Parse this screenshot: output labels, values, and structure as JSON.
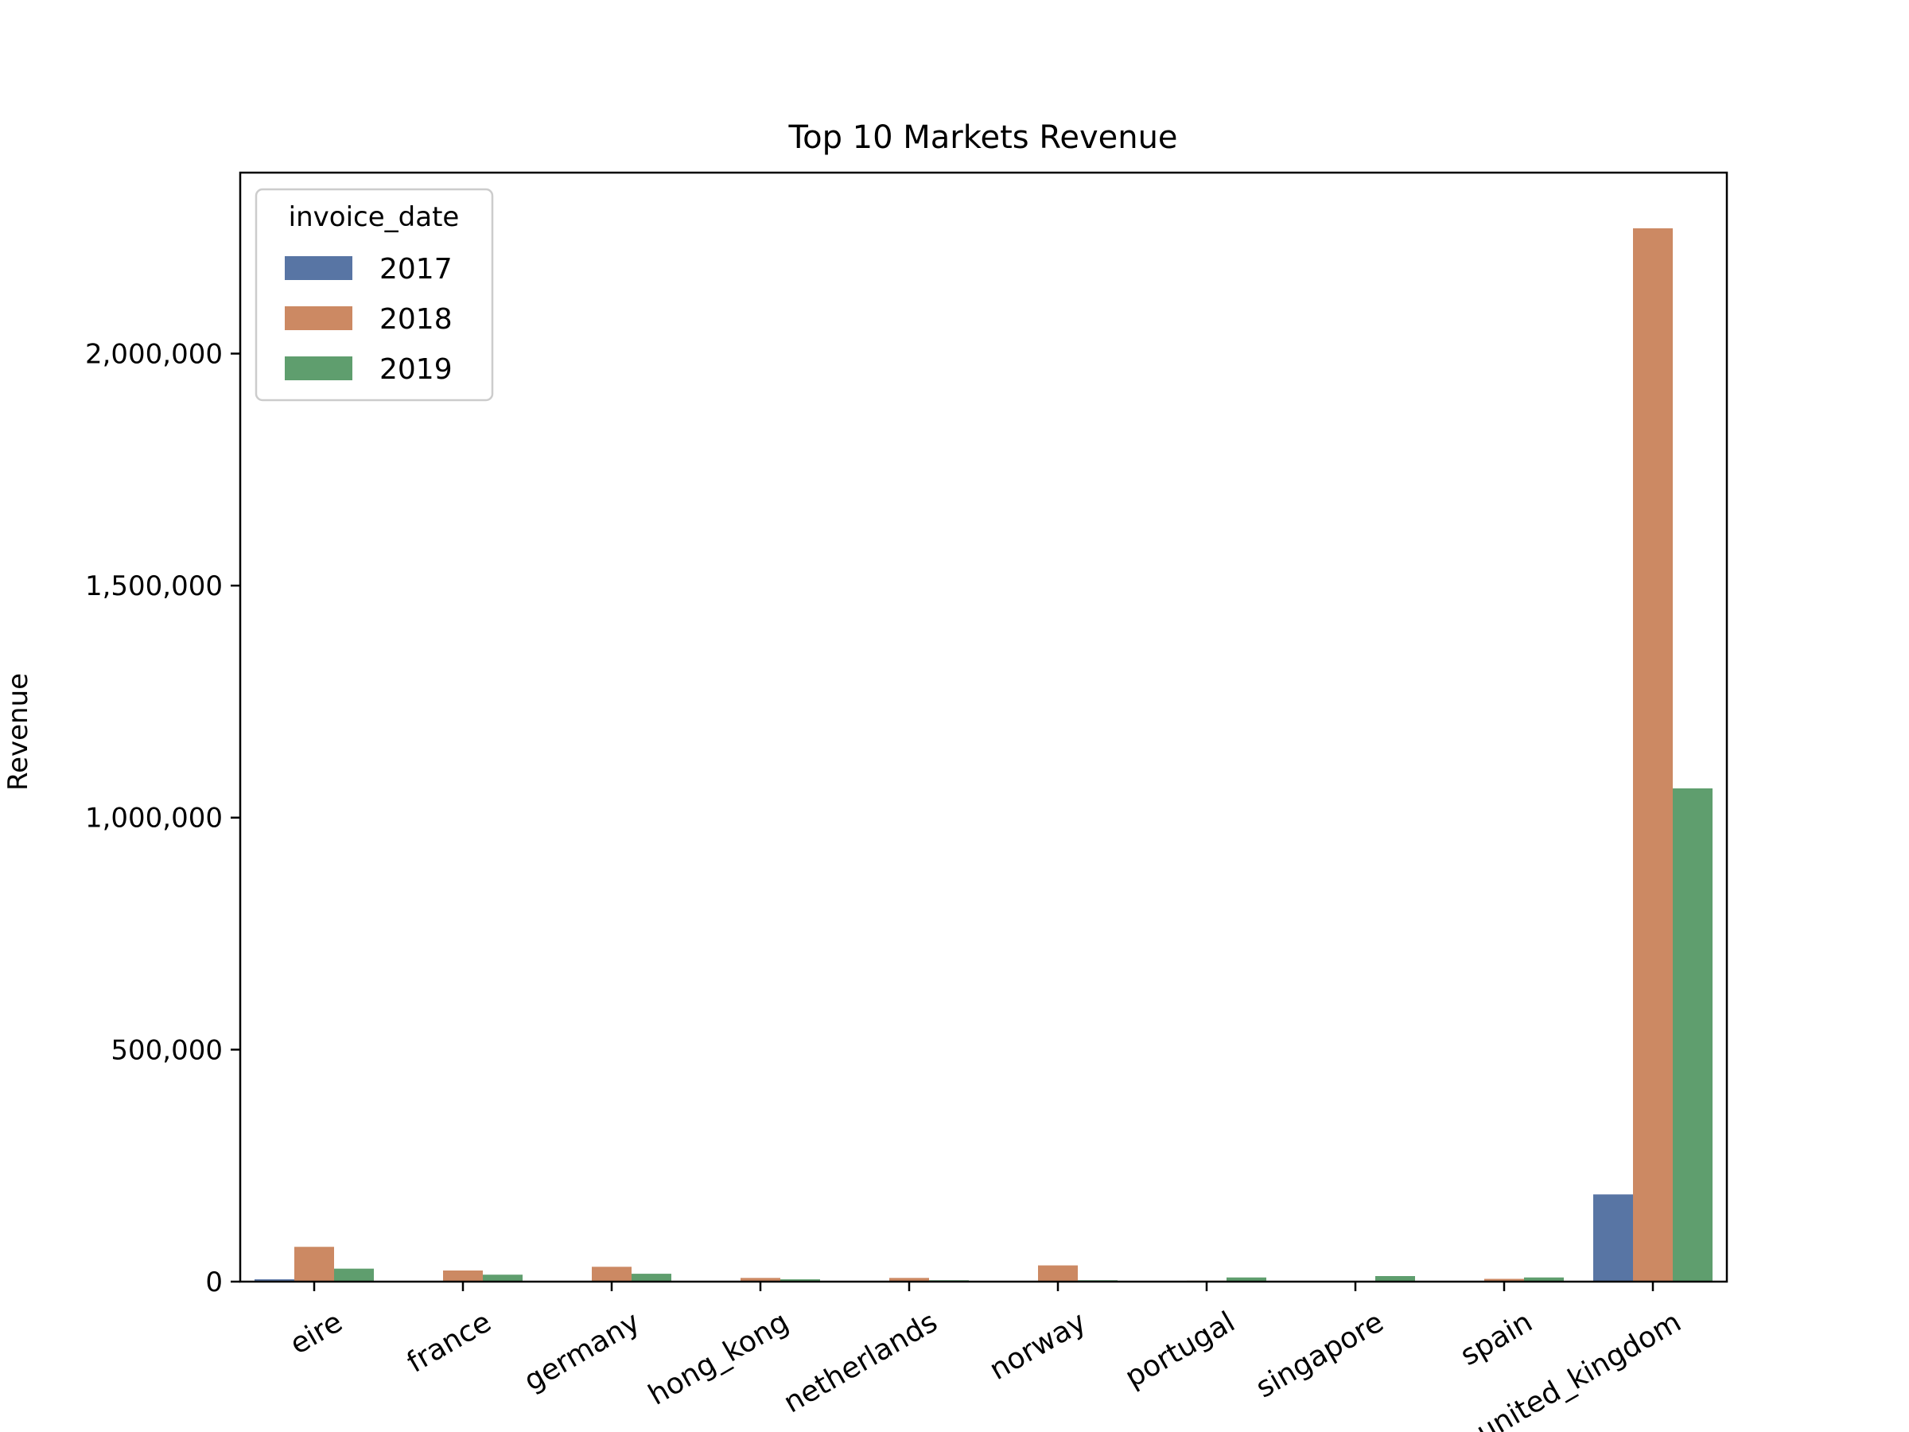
{
  "chart_data": {
    "type": "bar",
    "title": "Top 10 Markets Revenue",
    "xlabel": "",
    "ylabel": "Revenue",
    "ylim": [
      0,
      2390000
    ],
    "yticks": [
      0,
      500000,
      1000000,
      1500000,
      2000000
    ],
    "ytick_labels": [
      "0",
      "500,000",
      "1,000,000",
      "1,500,000",
      "2,000,000"
    ],
    "categories": [
      "eire",
      "france",
      "germany",
      "hong_kong",
      "netherlands",
      "norway",
      "portugal",
      "singapore",
      "spain",
      "united_kingdom"
    ],
    "legend": {
      "title": "invoice_date",
      "position": "top-left"
    },
    "grid": false,
    "series": [
      {
        "name": "2017",
        "color": "#5875a4",
        "values": [
          5000,
          0,
          0,
          0,
          0,
          0,
          0,
          0,
          0,
          188000
        ]
      },
      {
        "name": "2018",
        "color": "#cc8963",
        "values": [
          75000,
          24000,
          32000,
          8000,
          8000,
          35000,
          2000,
          0,
          6000,
          2270000
        ]
      },
      {
        "name": "2019",
        "color": "#5f9e6e",
        "values": [
          28000,
          15000,
          17000,
          5000,
          3000,
          3000,
          9000,
          12000,
          9000,
          1063000
        ]
      }
    ]
  }
}
